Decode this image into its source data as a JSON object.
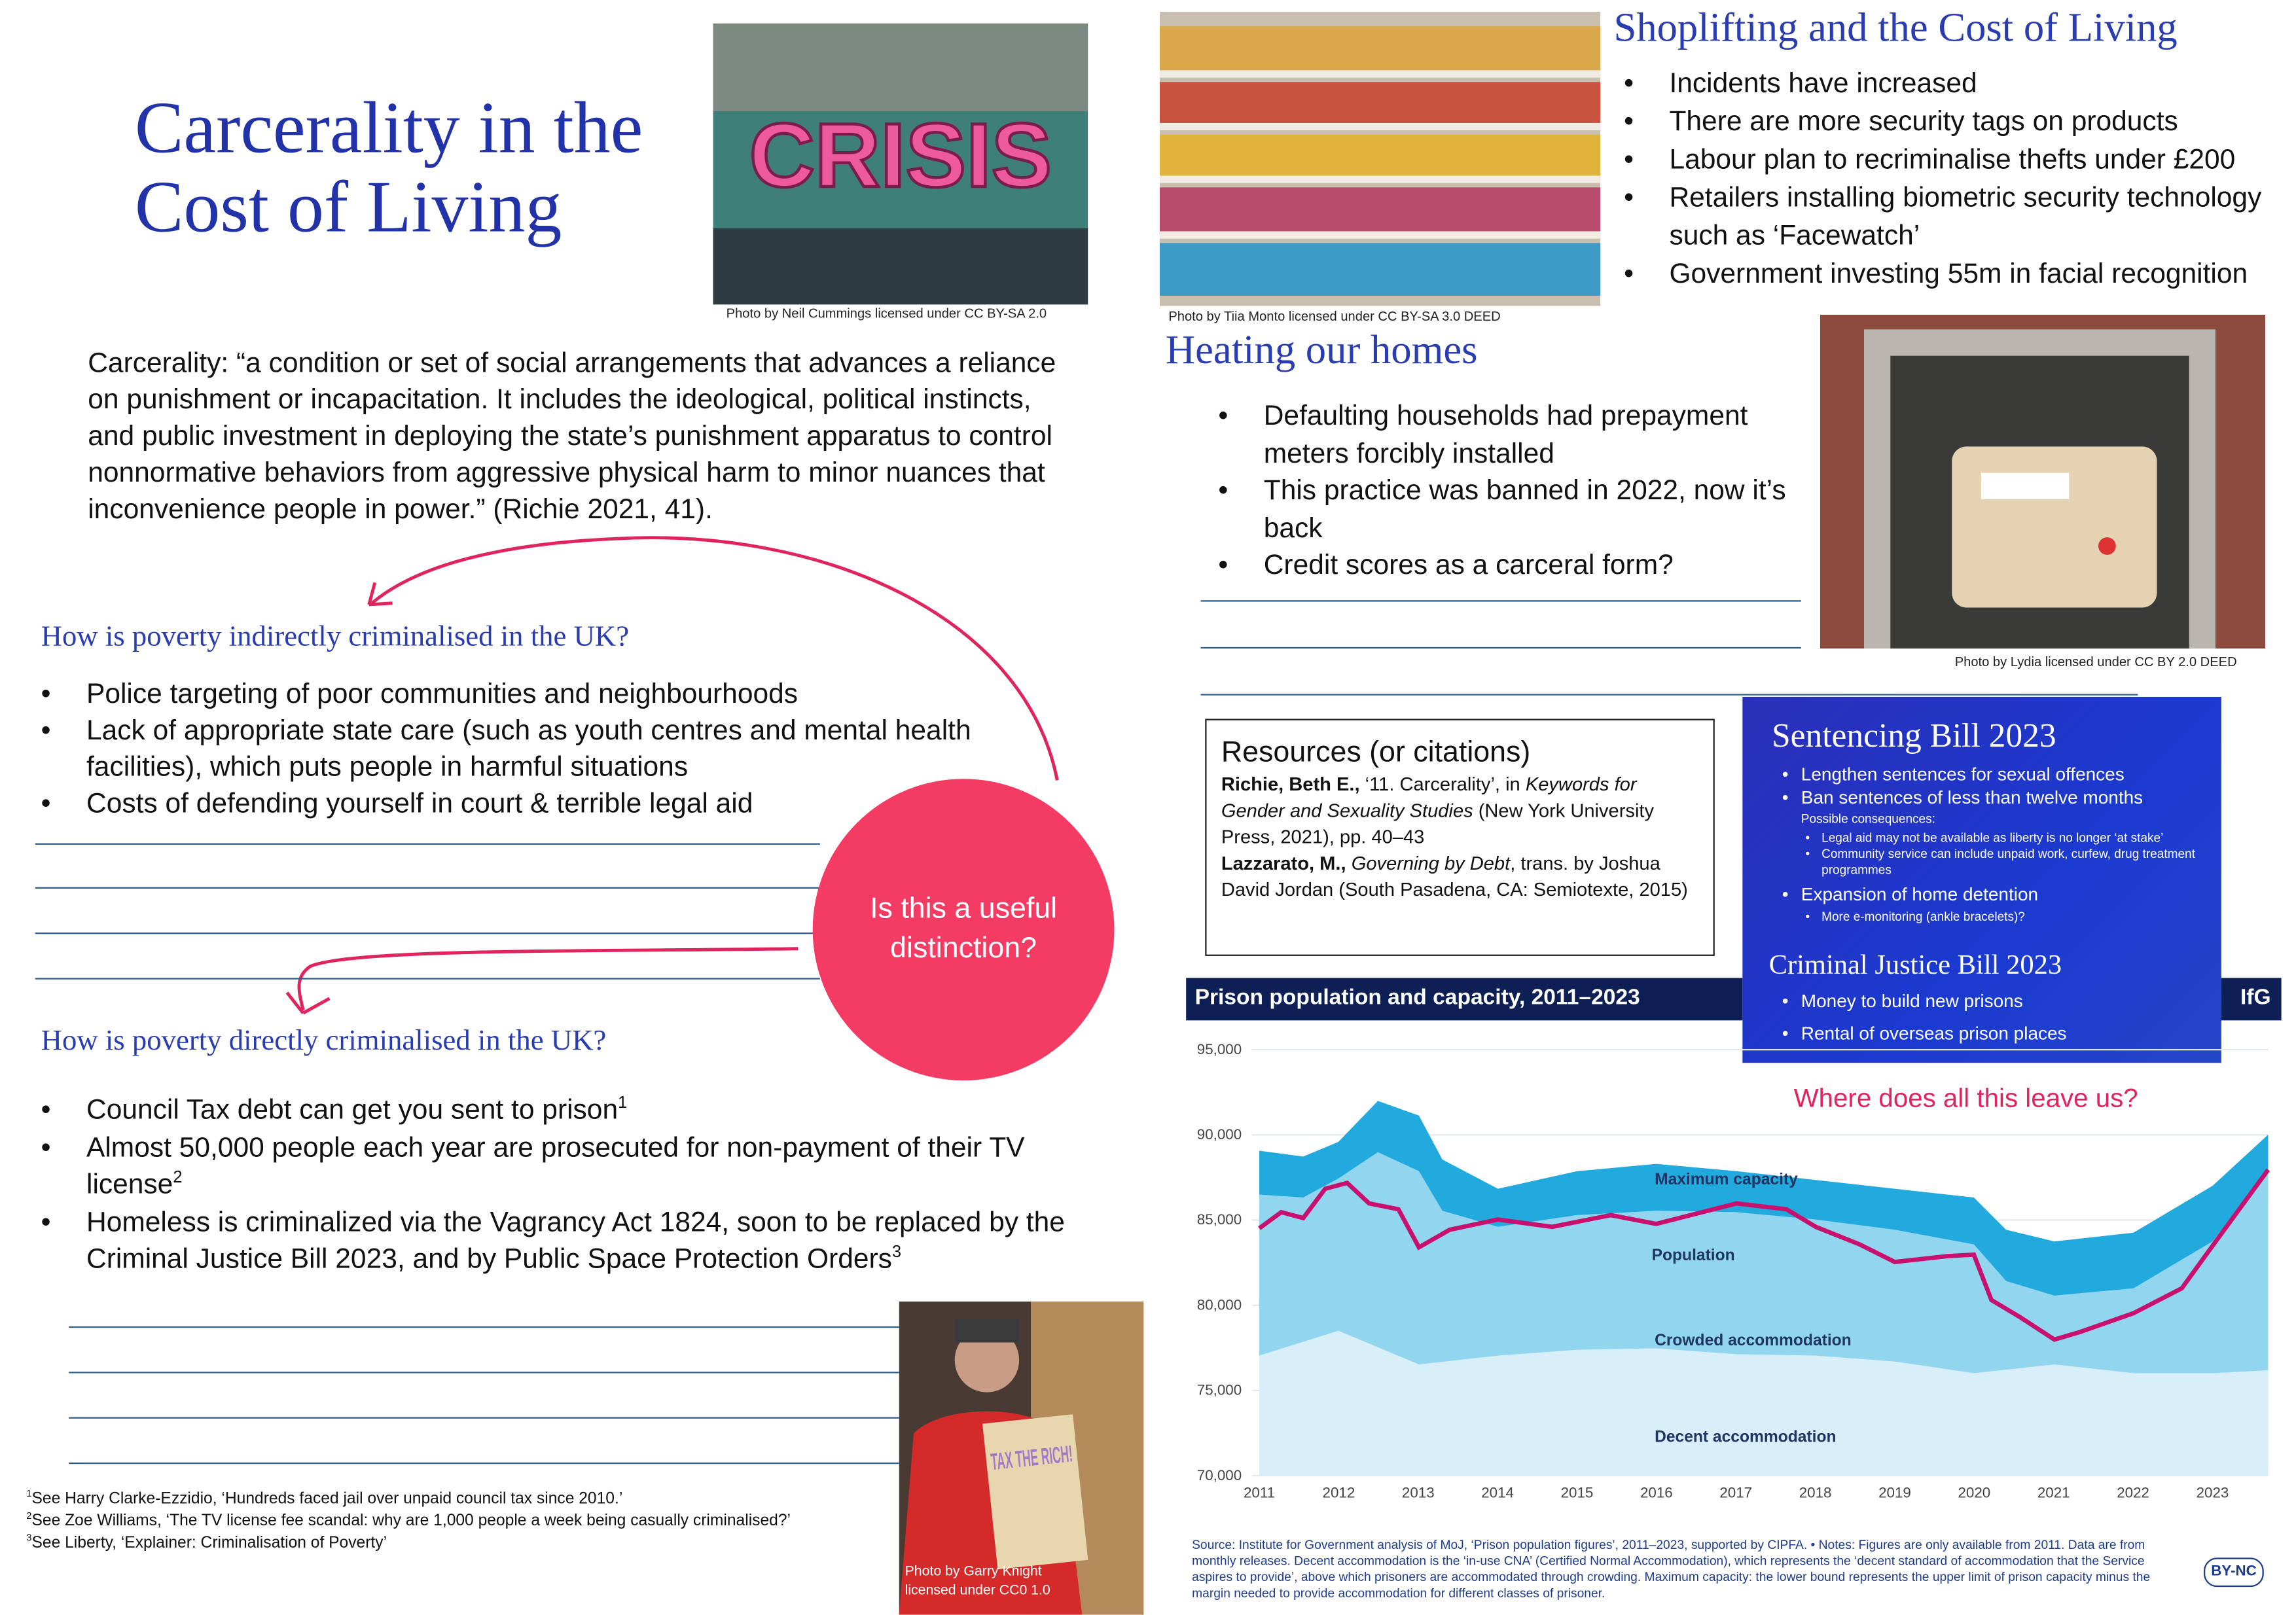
{
  "header": {
    "title": "Carcerality in the Cost of Living"
  },
  "photos": [
    {
      "caption": "Photo by Neil Cummings licensed under CC BY-SA 2.0",
      "sign": "CRISIS"
    },
    {
      "caption": "Photo by Tiia Monto licensed under CC BY-SA 3.0 DEED"
    },
    {
      "caption": "Photo by Lydia  licensed under CC BY 2.0 DEED"
    },
    {
      "caption": "Photo by Garry Knight licensed under CC0 1.0",
      "sign": "TAX THE RICH!"
    }
  ],
  "definition": "Carcerality: “a condition or set of social arrangements that advances a reliance on punishment or incapacitation. It includes the ideological, political instincts, and public investment in deploying the state’s punishment apparatus to control nonnormative behaviors from aggressive physical harm to minor nuances that inconvenience people in power.” (Richie 2021, 41).",
  "indirect": {
    "heading": "How is poverty indirectly criminalised in the UK?",
    "bullets": [
      {
        "text": "Police targeting of poor communities and neighbourhoods"
      },
      {
        "text": "Lack of appropriate state care (such as youth centres and mental health facilities), which puts people in harmful situations"
      },
      {
        "text": "Costs of defending yourself in court & terrible legal aid"
      }
    ]
  },
  "circle": "Is this a useful distinction?",
  "direct": {
    "heading": "How is poverty directly criminalised in the UK?",
    "bullets": [
      {
        "text": "Council Tax debt can get you sent to prison",
        "sup": "1"
      },
      {
        "text": "Almost 50,000 people each year are prosecuted for non-payment of their TV license",
        "sup": "2"
      },
      {
        "text": "Homeless is criminalized via the Vagrancy Act 1824, soon to be replaced by the Criminal Justice Bill 2023, and by Public Space Protection Orders",
        "sup": "3"
      }
    ]
  },
  "footnotes": [
    {
      "marker": "1",
      "text": "See Harry Clarke-Ezzidio, ‘Hundreds faced jail over unpaid council tax since 2010.’"
    },
    {
      "marker": "2",
      "text": "See Zoe Williams, ‘The TV license fee scandal: why are 1,000 people a week being casually criminalised?’"
    },
    {
      "marker": "3",
      "text": "See Liberty, ‘Explainer: Criminalisation of Poverty’"
    }
  ],
  "shoplifting": {
    "heading": "Shoplifting and the Cost of Living",
    "bullets": [
      {
        "text": "Incidents have increased"
      },
      {
        "text": "There are more security tags on products"
      },
      {
        "text": "Labour plan to recriminalise thefts under £200"
      },
      {
        "text": "Retailers installing biometric security technology such as ‘Facewatch’"
      },
      {
        "text": "Government investing 55m in facial recognition"
      }
    ]
  },
  "heating": {
    "heading": "Heating our homes",
    "bullets": [
      {
        "text": "Defaulting households had prepayment meters forcibly installed"
      },
      {
        "text": "This practice was banned in 2022, now it’s back"
      },
      {
        "text": "Credit scores as a carceral form?"
      }
    ]
  },
  "resources": {
    "title": "Resources (or citations)",
    "entries": [
      {
        "author": "Richie, Beth E.,",
        "before": " ‘11. Carcerality’, in ",
        "work": "Keywords for Gender and Sexuality Studies",
        "after": " (New York University Press, 2021), pp. 40–43"
      },
      {
        "author": "Lazzarato, M.,",
        "before": " ",
        "work": "Governing by Debt",
        "after": ", trans. by Joshua David Jordan (South Pasadena, CA: Semiotexte, 2015)"
      }
    ]
  },
  "sentencing": {
    "title": "Sentencing Bill 2023",
    "items": [
      {
        "text": "Lengthen sentences for sexual offences"
      },
      {
        "text": "Ban sentences of less than twelve months",
        "note": "Possible consequences:",
        "subitems": [
          "Legal aid may not be available as liberty is no longer ‘at stake’",
          "Community service can include unpaid work, curfew, drug treatment programmes"
        ]
      },
      {
        "text": "Expansion of home detention",
        "subitems": [
          "More e-monitoring (ankle bracelets)?"
        ]
      }
    ]
  },
  "criminal_justice": {
    "title": "Criminal Justice Bill 2023",
    "items": [
      {
        "text": "Money to build new prisons"
      },
      {
        "text": "Rental of overseas prison places"
      }
    ]
  },
  "question": "Where does all this leave us?",
  "chart": {
    "title": "Prison population and capacity, 2011–2023",
    "logo": "IfG",
    "y_ticks": [
      "95,000",
      "90,000",
      "85,000",
      "80,000",
      "75,000",
      "70,000"
    ],
    "x_ticks": [
      "2011",
      "2012",
      "2013",
      "2014",
      "2015",
      "2016",
      "2017",
      "2018",
      "2019",
      "2020",
      "2021",
      "2022",
      "2023"
    ],
    "area_labels": [
      "Maximum capacity",
      "Population",
      "Crowded accommodation",
      "Decent accommodation"
    ],
    "source": "Source: Institute for Government analysis of MoJ, ‘Prison population figures’, 2011–2023, supported by CIPFA. • Notes: Figures are only available from 2011. Data are from monthly releases. Decent accommodation is the ‘in-use CNA’ (Certified Normal Accommodation), which represents the ‘decent standard of accommodation that the Service aspires to provide’, above which prisoners are accommodated through crowding. Maximum capacity: the lower bound represents the upper limit of prison capacity minus the margin needed to provide accommodation for different classes of prisoner.",
    "license": "BY-NC"
  }
}
